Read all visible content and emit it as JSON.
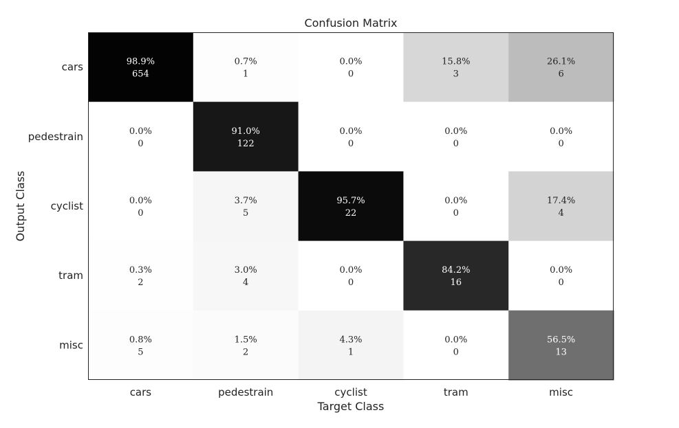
{
  "chart_data": {
    "type": "heatmap",
    "title": "Confusion Matrix",
    "xlabel": "Target Class",
    "ylabel": "Output Class",
    "x_categories": [
      "cars",
      "pedestrain",
      "cyclist",
      "tram",
      "misc"
    ],
    "y_categories": [
      "cars",
      "pedestrain",
      "cyclist",
      "tram",
      "misc"
    ],
    "colormap": "gray_reversed",
    "value_range": [
      0,
      100
    ],
    "grid": false,
    "cells": [
      [
        {
          "percent": 98.9,
          "percent_label": "98.9%",
          "count": 654,
          "count_label": "654"
        },
        {
          "percent": 0.7,
          "percent_label": "0.7%",
          "count": 1,
          "count_label": "1"
        },
        {
          "percent": 0.0,
          "percent_label": "0.0%",
          "count": 0,
          "count_label": "0"
        },
        {
          "percent": 15.8,
          "percent_label": "15.8%",
          "count": 3,
          "count_label": "3"
        },
        {
          "percent": 26.1,
          "percent_label": "26.1%",
          "count": 6,
          "count_label": "6"
        }
      ],
      [
        {
          "percent": 0.0,
          "percent_label": "0.0%",
          "count": 0,
          "count_label": "0"
        },
        {
          "percent": 91.0,
          "percent_label": "91.0%",
          "count": 122,
          "count_label": "122"
        },
        {
          "percent": 0.0,
          "percent_label": "0.0%",
          "count": 0,
          "count_label": "0"
        },
        {
          "percent": 0.0,
          "percent_label": "0.0%",
          "count": 0,
          "count_label": "0"
        },
        {
          "percent": 0.0,
          "percent_label": "0.0%",
          "count": 0,
          "count_label": "0"
        }
      ],
      [
        {
          "percent": 0.0,
          "percent_label": "0.0%",
          "count": 0,
          "count_label": "0"
        },
        {
          "percent": 3.7,
          "percent_label": "3.7%",
          "count": 5,
          "count_label": "5"
        },
        {
          "percent": 95.7,
          "percent_label": "95.7%",
          "count": 22,
          "count_label": "22"
        },
        {
          "percent": 0.0,
          "percent_label": "0.0%",
          "count": 0,
          "count_label": "0"
        },
        {
          "percent": 17.4,
          "percent_label": "17.4%",
          "count": 4,
          "count_label": "4"
        }
      ],
      [
        {
          "percent": 0.3,
          "percent_label": "0.3%",
          "count": 2,
          "count_label": "2"
        },
        {
          "percent": 3.0,
          "percent_label": "3.0%",
          "count": 4,
          "count_label": "4"
        },
        {
          "percent": 0.0,
          "percent_label": "0.0%",
          "count": 0,
          "count_label": "0"
        },
        {
          "percent": 84.2,
          "percent_label": "84.2%",
          "count": 16,
          "count_label": "16"
        },
        {
          "percent": 0.0,
          "percent_label": "0.0%",
          "count": 0,
          "count_label": "0"
        }
      ],
      [
        {
          "percent": 0.8,
          "percent_label": "0.8%",
          "count": 5,
          "count_label": "5"
        },
        {
          "percent": 1.5,
          "percent_label": "1.5%",
          "count": 2,
          "count_label": "2"
        },
        {
          "percent": 4.3,
          "percent_label": "4.3%",
          "count": 1,
          "count_label": "1"
        },
        {
          "percent": 0.0,
          "percent_label": "0.0%",
          "count": 0,
          "count_label": "0"
        },
        {
          "percent": 56.5,
          "percent_label": "56.5%",
          "count": 13,
          "count_label": "13"
        }
      ]
    ]
  }
}
